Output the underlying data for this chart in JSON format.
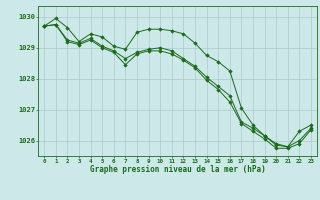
{
  "title": "Graphe pression niveau de la mer (hPa)",
  "bg_color": "#cce8e8",
  "grid_color": "#aacccc",
  "line_color": "#1a6b1a",
  "marker_color": "#1a6b1a",
  "xlim": [
    -0.5,
    23.5
  ],
  "ylim": [
    1025.5,
    1030.35
  ],
  "yticks": [
    1026,
    1027,
    1028,
    1029,
    1030
  ],
  "ytick_labels": [
    "1026",
    "1027",
    "1028",
    "1029",
    "1030"
  ],
  "xticks": [
    0,
    1,
    2,
    3,
    4,
    5,
    6,
    7,
    8,
    9,
    10,
    11,
    12,
    13,
    14,
    15,
    16,
    17,
    18,
    19,
    20,
    21,
    22,
    23
  ],
  "series1": [
    1029.7,
    1029.95,
    1029.65,
    1029.2,
    1029.45,
    1029.35,
    1029.05,
    1028.95,
    1029.5,
    1029.6,
    1029.6,
    1029.55,
    1029.45,
    1029.15,
    1028.75,
    1028.55,
    1028.25,
    1027.05,
    1026.5,
    1026.15,
    1025.9,
    1025.8,
    1026.3,
    1026.5
  ],
  "series2": [
    1029.7,
    1029.75,
    1029.25,
    1029.15,
    1029.3,
    1029.05,
    1028.9,
    1028.65,
    1028.85,
    1028.95,
    1029.0,
    1028.9,
    1028.65,
    1028.4,
    1028.05,
    1027.75,
    1027.45,
    1026.6,
    1026.4,
    1026.15,
    1025.85,
    1025.8,
    1026.0,
    1026.4
  ],
  "series3": [
    1029.7,
    1029.75,
    1029.2,
    1029.1,
    1029.25,
    1029.0,
    1028.85,
    1028.45,
    1028.8,
    1028.9,
    1028.9,
    1028.8,
    1028.6,
    1028.35,
    1027.95,
    1027.65,
    1027.25,
    1026.55,
    1026.3,
    1026.05,
    1025.75,
    1025.75,
    1025.9,
    1026.35
  ]
}
